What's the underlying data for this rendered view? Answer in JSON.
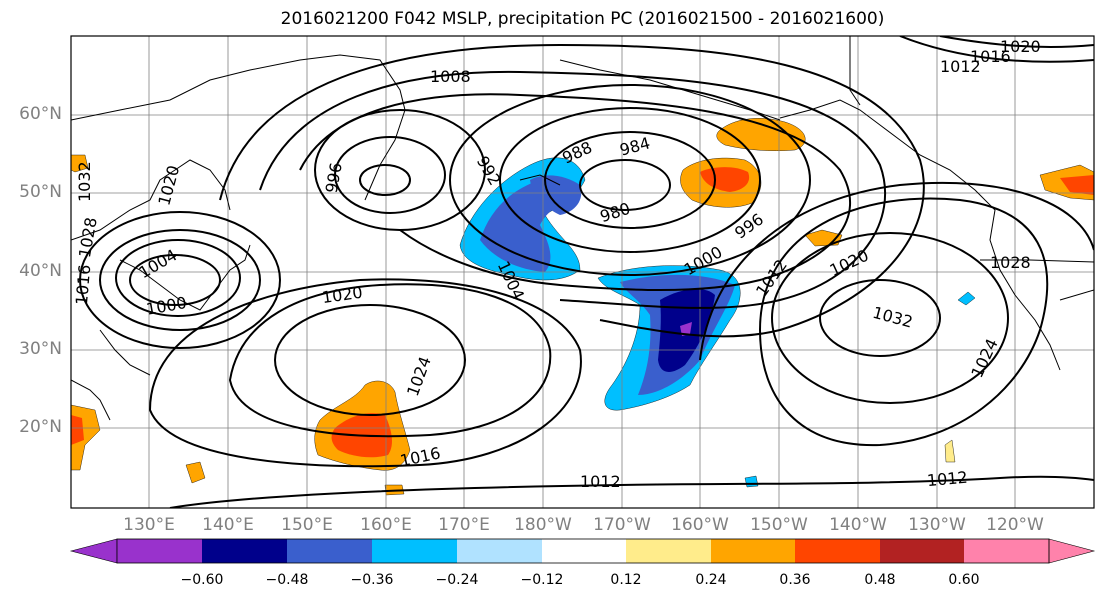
{
  "title": "2016021200 F042 MSLP, precipitation PC (2016021500 - 2016021600)",
  "lat_labels": [
    "60°N",
    "50°N",
    "40°N",
    "30°N",
    "20°N"
  ],
  "lon_labels": [
    "130°E",
    "140°E",
    "150°E",
    "160°E",
    "170°E",
    "180°W",
    "170°W",
    "160°W",
    "150°W",
    "140°W",
    "130°W",
    "120°W"
  ],
  "colorbar": {
    "ticks": [
      "−0.60",
      "−0.48",
      "−0.36",
      "−0.24",
      "−0.12",
      "0.12",
      "0.24",
      "0.36",
      "0.48",
      "0.60"
    ],
    "colors": [
      "#9932CC",
      "#00008B",
      "#3A5FCD",
      "#00BFFF",
      "#B0E2FF",
      "#FFFFFF",
      "#FFEC8B",
      "#FFA500",
      "#FF4500",
      "#B22222",
      "#FF82AB"
    ]
  },
  "isobar_labels": [
    "1008",
    "1016",
    "1020",
    "1012",
    "996",
    "988",
    "984",
    "992",
    "980",
    "996",
    "1000",
    "1004",
    "1012",
    "1020",
    "1028",
    "1032",
    "1024",
    "1004",
    "1000",
    "1020",
    "1024",
    "1016",
    "1012",
    "1012",
    "1032",
    "1020",
    "1028",
    "1016"
  ]
}
